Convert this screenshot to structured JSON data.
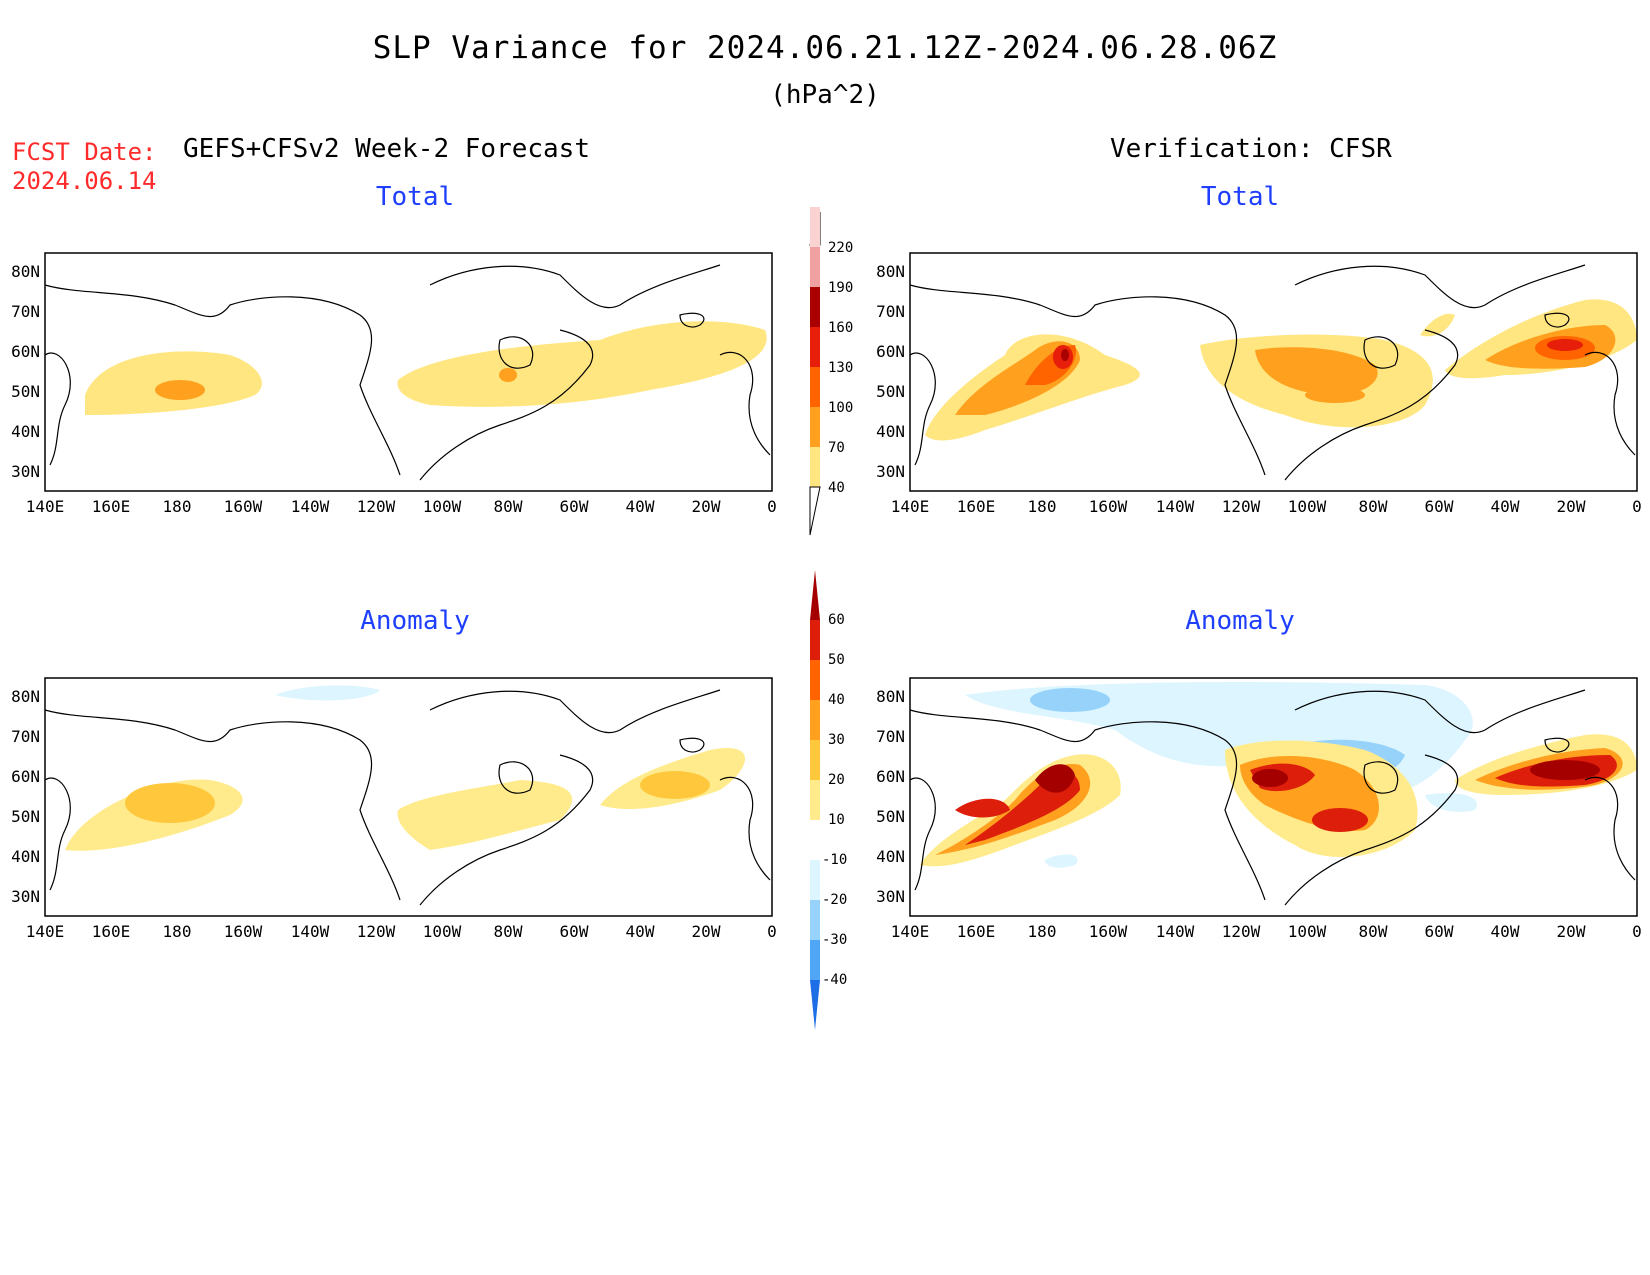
{
  "title": "SLP Variance for 2024.06.21.12Z-2024.06.28.06Z",
  "units": "(hPa^2)",
  "forecast_date": {
    "label": "FCST Date:",
    "value": "2024.06.14"
  },
  "left_header": "GEFS+CFSv2 Week-2 Forecast",
  "right_header": "Verification: CFSR",
  "panels": {
    "forecast_total": {
      "subtitle": "Total"
    },
    "forecast_anomaly": {
      "subtitle": "Anomaly"
    },
    "verif_total": {
      "subtitle": "Total"
    },
    "verif_anomaly": {
      "subtitle": "Anomaly"
    }
  },
  "axes": {
    "lon_labels": [
      "140E",
      "160E",
      "180",
      "160W",
      "140W",
      "120W",
      "100W",
      "80W",
      "60W",
      "40W",
      "20W",
      "0"
    ],
    "lat_labels": [
      "80N",
      "70N",
      "60N",
      "50N",
      "40N",
      "30N"
    ]
  },
  "colorbar_total": {
    "levels": [
      "40",
      "70",
      "100",
      "130",
      "160",
      "190",
      "220"
    ],
    "colors": [
      "#ffe680",
      "#ffa01e",
      "#ff6400",
      "#e61e0a",
      "#aa0000",
      "#f0a0a0",
      "#fad2d2"
    ]
  },
  "colorbar_anomaly": {
    "levels": [
      "60",
      "50",
      "40",
      "30",
      "20",
      "10",
      "-10",
      "-20",
      "-30",
      "-40"
    ],
    "colors_top_to_bottom": [
      "#a50000",
      "#dc1e0a",
      "#ff6400",
      "#ffa01e",
      "#ffc83c",
      "#ffeb8c",
      "#ffffff",
      "#dcf5ff",
      "#96d2fa",
      "#50a5f5",
      "#1e6ee6"
    ]
  },
  "chart_data": [
    {
      "type": "heatmap",
      "title": "Total",
      "panel": "GEFS+CFSv2 Week-2 Forecast",
      "xlim": [
        "140E",
        "0"
      ],
      "ylim": [
        "25N",
        "85N"
      ],
      "features": [
        {
          "region": "North Pacific 178E-178W, 45-55N",
          "range": "40-70",
          "peak": "70-100"
        },
        {
          "region": "Hudson Bay to North Atlantic 100W-10W, 40-65N",
          "range": "40-70",
          "peak": "70-100 near 82W 50N"
        }
      ]
    },
    {
      "type": "heatmap",
      "title": "Anomaly",
      "panel": "GEFS+CFSv2 Week-2 Forecast",
      "xlim": [
        "140E",
        "0"
      ],
      "ylim": [
        "25N",
        "85N"
      ],
      "features": [
        {
          "region": "North Pacific 160E-160W, 40-58N",
          "range": "10-20",
          "peak": "20-30"
        },
        {
          "region": "Canada 105W-60W, 40-55N",
          "range": "10-20"
        },
        {
          "region": "North Atlantic 40W-10W, 45-60N",
          "range": "10-20",
          "peak": "20-30"
        }
      ]
    },
    {
      "type": "heatmap",
      "title": "Total",
      "panel": "Verification: CFSR",
      "xlim": [
        "140E",
        "0"
      ],
      "ylim": [
        "25N",
        "85N"
      ],
      "features": [
        {
          "region": "North Pacific 145E-165W, 35-62N",
          "range": "40-160",
          "peak": "130-160 near 175E 55N"
        },
        {
          "region": "Canada/Great Lakes 115W-60W, 38-58N",
          "range": "40-100"
        },
        {
          "region": "North Atlantic 55W-0, 45-65N",
          "range": "40-160",
          "peak": "130-160 near 15W 55N"
        }
      ]
    },
    {
      "type": "heatmap",
      "title": "Anomaly",
      "panel": "Verification: CFSR",
      "xlim": [
        "140E",
        "0"
      ],
      "ylim": [
        "25N",
        "85N"
      ],
      "features": [
        {
          "region": "North Pacific 145E-165W, 35-62N",
          "range": "10-60",
          "peak": ">60"
        },
        {
          "region": "Canada/Great Lakes 115W-65W, 38-57N",
          "range": "10-60",
          "peak": "50-60"
        },
        {
          "region": "North Atlantic 30W-0, 45-60N",
          "range": "10-60",
          "peak": ">60"
        },
        {
          "region": "Hudson Bay / Arctic 100W-60W, 55-85N",
          "range": "-10 to -30"
        }
      ]
    }
  ]
}
